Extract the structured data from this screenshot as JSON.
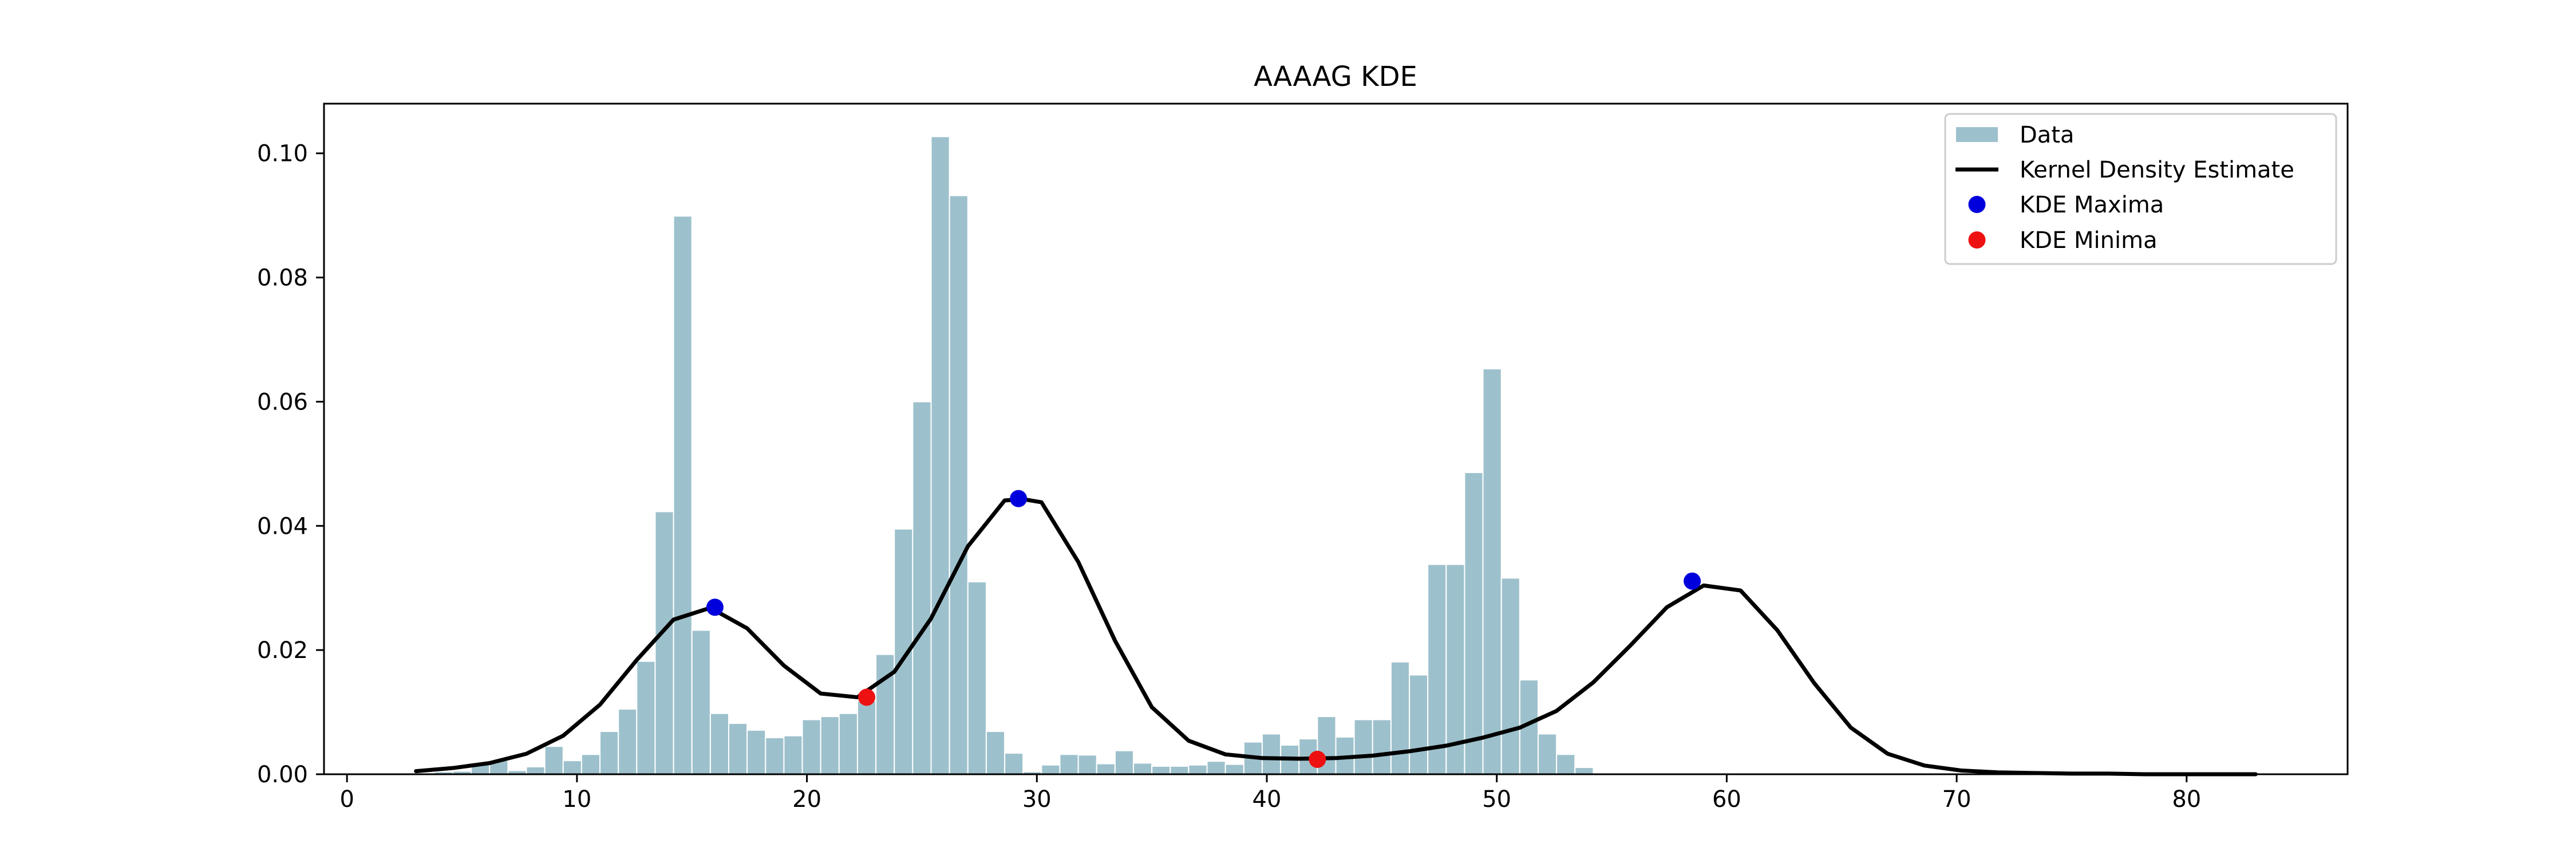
{
  "chart_data": {
    "type": "bar",
    "title": "AAAAG KDE",
    "xlabel": "",
    "ylabel": "",
    "xlim": [
      -1,
      87
    ],
    "ylim": [
      0,
      0.108
    ],
    "x_ticks": [
      0,
      10,
      20,
      30,
      40,
      50,
      60,
      70,
      80
    ],
    "y_ticks": [
      0.0,
      0.02,
      0.04,
      0.06,
      0.08,
      0.1
    ],
    "x_tick_labels": [
      "0",
      "10",
      "20",
      "30",
      "40",
      "50",
      "60",
      "70",
      "80"
    ],
    "y_tick_labels": [
      "0.00",
      "0.02",
      "0.04",
      "0.06",
      "0.08",
      "0.10"
    ],
    "grid": false,
    "legend_position": "top-right",
    "legend": [
      "Data",
      "Kernel Density Estimate",
      "KDE Maxima",
      "KDE Minima"
    ],
    "colors": {
      "histogram": "#9dc1cc",
      "histogram_edge": "#ffffff",
      "kde_line": "#000000",
      "maxima": "#0000dd",
      "minima": "#ee1111"
    },
    "series": [
      {
        "name": "Data",
        "type": "histogram",
        "bin_width": 0.8,
        "bin_starts": [
          3.0,
          3.8,
          4.6,
          5.4,
          6.2,
          7.0,
          7.8,
          8.6,
          9.4,
          10.2,
          11.0,
          11.8,
          12.6,
          13.4,
          14.2,
          15.0,
          15.8,
          16.6,
          17.4,
          18.2,
          19.0,
          19.8,
          20.6,
          21.4,
          22.2,
          23.0,
          23.8,
          24.6,
          25.4,
          26.2,
          27.0,
          27.8,
          28.6,
          29.4,
          30.2,
          31.0,
          31.8,
          32.6,
          33.4,
          34.2,
          35.0,
          35.8,
          36.6,
          37.4,
          38.2,
          39.0,
          39.8,
          40.6,
          41.4,
          42.2,
          43.0,
          43.8,
          44.6,
          45.4,
          46.2,
          47.0,
          47.8,
          48.6,
          49.4,
          50.2,
          51.0,
          51.8,
          52.6,
          53.4,
          54.2,
          55.0,
          55.8,
          56.6,
          57.4,
          58.2,
          59.0,
          59.8,
          60.6,
          61.4,
          62.2,
          63.0,
          63.8,
          64.6,
          65.4,
          66.2,
          67.0,
          67.8,
          68.6
        ],
        "values": [
          0.0002,
          0.0004,
          0.0005,
          0.0018,
          0.0022,
          0.0006,
          0.0012,
          0.0045,
          0.0022,
          0.0032,
          0.0069,
          0.0105,
          0.0182,
          0.0423,
          0.0899,
          0.0232,
          0.0098,
          0.0082,
          0.0071,
          0.0059,
          0.0062,
          0.0088,
          0.0093,
          0.0098,
          0.0118,
          0.0193,
          0.0395,
          0.06,
          0.1027,
          0.0932,
          0.031,
          0.0069,
          0.0034,
          0.0004,
          0.0015,
          0.0032,
          0.0031,
          0.0017,
          0.0038,
          0.0018,
          0.0013,
          0.0013,
          0.0015,
          0.0021,
          0.0016,
          0.0052,
          0.0065,
          0.0047,
          0.0057,
          0.0093,
          0.006,
          0.0088,
          0.0088,
          0.0181,
          0.016,
          0.0338,
          0.0338,
          0.0486,
          0.0653,
          0.0316,
          0.0152,
          0.0065,
          0.0032,
          0.0011,
          0.0002,
          0.0001,
          0.0,
          0.0,
          0.0,
          0.0,
          0.0,
          0.0,
          0.0,
          0.0,
          0.0,
          0.0,
          0.0,
          0.0,
          0.0,
          0.0,
          0.0,
          0.0,
          0.0
        ]
      },
      {
        "name": "Kernel Density Estimate",
        "type": "line",
        "x": [
          3.0,
          4.6,
          6.2,
          7.8,
          9.4,
          11.0,
          12.6,
          14.2,
          15.8,
          17.4,
          19.0,
          20.6,
          22.2,
          23.8,
          25.4,
          27.0,
          28.6,
          29.4,
          30.2,
          31.8,
          33.4,
          35.0,
          36.6,
          38.2,
          39.8,
          41.4,
          43.0,
          44.6,
          46.2,
          47.8,
          49.4,
          51.0,
          52.6,
          54.2,
          55.8,
          57.4,
          59.0,
          60.6,
          62.2,
          63.8,
          65.4,
          67.0,
          68.6,
          70.2,
          71.8,
          73.4,
          75.0,
          76.6,
          78.2,
          79.8,
          81.4,
          83.0
        ],
        "y": [
          0.0005,
          0.001,
          0.0018,
          0.0033,
          0.0062,
          0.0112,
          0.0184,
          0.0249,
          0.0268,
          0.0235,
          0.0175,
          0.013,
          0.0124,
          0.0165,
          0.0251,
          0.0367,
          0.0441,
          0.0443,
          0.0438,
          0.0342,
          0.0215,
          0.0108,
          0.0054,
          0.0032,
          0.0026,
          0.0025,
          0.0026,
          0.003,
          0.0037,
          0.0046,
          0.0059,
          0.0075,
          0.0102,
          0.0148,
          0.0207,
          0.0269,
          0.0304,
          0.0296,
          0.0232,
          0.0147,
          0.0075,
          0.0033,
          0.0014,
          0.0006,
          0.0003,
          0.0002,
          0.0001,
          0.0001,
          0.0,
          0.0,
          0.0,
          0.0
        ]
      },
      {
        "name": "KDE Maxima",
        "type": "scatter",
        "x": [
          16.0,
          29.2,
          58.5
        ],
        "y": [
          0.0269,
          0.0444,
          0.0311
        ]
      },
      {
        "name": "KDE Minima",
        "type": "scatter",
        "x": [
          22.6,
          42.2
        ],
        "y": [
          0.0124,
          0.0024
        ]
      }
    ]
  }
}
